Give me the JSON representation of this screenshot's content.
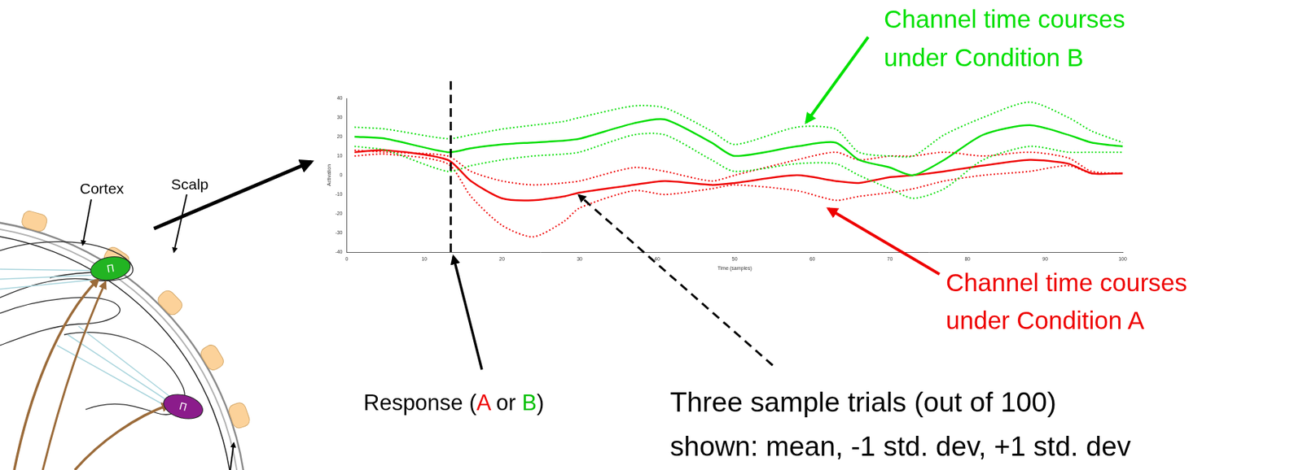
{
  "chart_data": {
    "type": "line",
    "x": [
      1,
      5,
      13,
      16,
      20,
      24,
      28,
      30,
      37,
      41,
      47,
      50,
      58,
      63,
      66,
      70,
      73,
      77,
      82,
      88,
      93,
      96,
      100
    ],
    "series": [
      {
        "color": "#00dd00",
        "line_style": "solid",
        "values": [
          20,
          19,
          12,
          14,
          16,
          17,
          18,
          19,
          27,
          29,
          17,
          10,
          15,
          17,
          8,
          4,
          0,
          8,
          21,
          26,
          21,
          17,
          15
        ]
      },
      {
        "color": "#00dd00",
        "line_style": "dotted",
        "values": [
          25,
          24,
          19,
          21,
          24,
          26,
          28,
          30,
          36,
          35,
          23,
          16,
          25,
          24,
          12,
          10,
          10,
          21,
          30,
          38,
          30,
          23,
          17
        ]
      },
      {
        "color": "#00dd00",
        "line_style": "dotted",
        "values": [
          15,
          13,
          2,
          5,
          8,
          10,
          11,
          12,
          21,
          21,
          8,
          2,
          6,
          6,
          0,
          -7,
          -12,
          -7,
          8,
          15,
          12,
          12,
          12
        ]
      },
      {
        "color": "#ee0000",
        "line_style": "solid",
        "values": [
          12,
          13,
          8,
          -3,
          -12,
          -13,
          -11,
          -9,
          -5,
          -3,
          -5,
          -4,
          0,
          -3,
          -4,
          -1,
          0,
          2,
          5,
          8,
          6,
          1,
          1
        ]
      },
      {
        "color": "#ee0000",
        "line_style": "dotted",
        "values": [
          13,
          12,
          10,
          2,
          -3,
          -5,
          -4,
          -3,
          4,
          2,
          -3,
          0,
          8,
          12,
          8,
          10,
          10,
          12,
          10,
          12,
          9,
          2,
          1
        ]
      },
      {
        "color": "#ee0000",
        "line_style": "dotted",
        "values": [
          10,
          11,
          6,
          -11,
          -26,
          -32,
          -24,
          -17,
          -8,
          -10,
          -7,
          -5,
          -8,
          -13,
          -11,
          -9,
          -7,
          -3,
          0,
          2,
          5,
          1,
          1
        ]
      }
    ],
    "xlim": [
      0,
      100
    ],
    "xticks": [
      0,
      10,
      20,
      30,
      40,
      50,
      60,
      70,
      80,
      90,
      100
    ],
    "ylim": [
      -40,
      40
    ],
    "yticks": [
      -40,
      -30,
      -20,
      -10,
      0,
      10,
      20,
      30,
      40
    ],
    "x_label": "Time (samples)",
    "y_label": "Activation",
    "grid": false,
    "response_time": 13.4
  },
  "annotations": {
    "condition_b": {
      "lines": [
        "Channel time courses",
        "under Condition B"
      ],
      "color": "#00e000"
    },
    "condition_a": {
      "lines": [
        "Channel time courses",
        "under Condition A"
      ],
      "color": "#ee0000"
    },
    "response": {
      "parts": [
        {
          "text": "Response ("
        },
        {
          "text": "A",
          "color": "#ee0000"
        },
        {
          "text": " or "
        },
        {
          "text": "B",
          "color": "#00c000"
        },
        {
          "text": ")"
        }
      ]
    },
    "trials": {
      "lines": [
        "Three sample trials (out of 100)",
        "shown: mean, -1 std. dev, +1 std. dev"
      ]
    }
  },
  "diagram": {
    "cortex": "Cortex",
    "scalp": "Scalp",
    "sources": [
      {
        "label": "Π",
        "color": "#22b422"
      },
      {
        "label": "Π",
        "color": "#8b1c8b"
      }
    ]
  }
}
